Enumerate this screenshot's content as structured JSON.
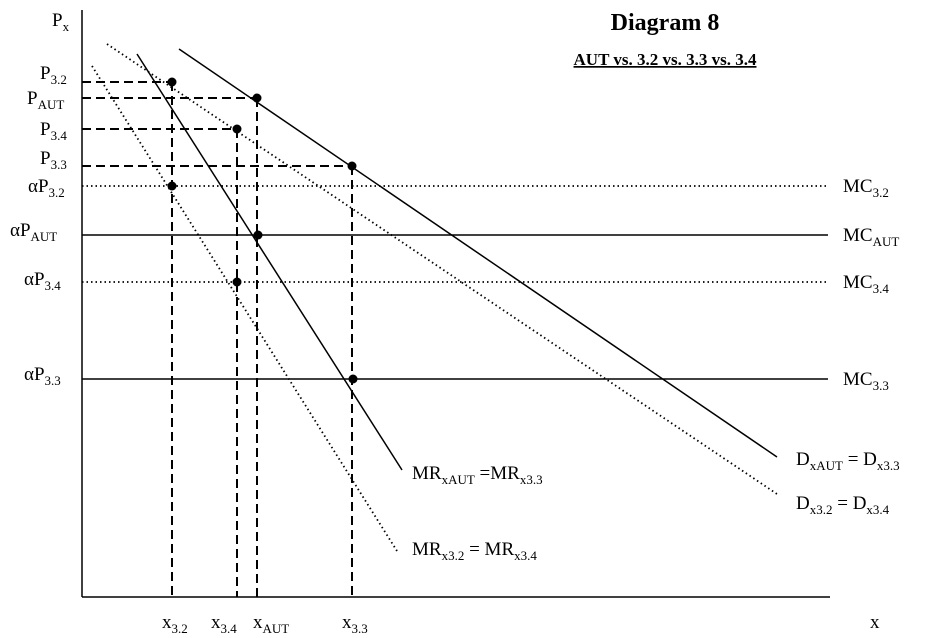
{
  "title": "Diagram 8",
  "subtitle": "AUT vs. 3.2 vs. 3.3 vs. 3.4",
  "axes": {
    "y_label": {
      "main": "P",
      "sub": "x"
    },
    "x_label": "x"
  },
  "price_labels": {
    "p32": {
      "main": "P",
      "sub": "3.2"
    },
    "paut": {
      "main": "P",
      "sub": "AUT"
    },
    "p34": {
      "main": "P",
      "sub": "3.4"
    },
    "p33": {
      "main": "P",
      "sub": "3.3"
    },
    "ap32": {
      "main": "αP",
      "sub": "3.2"
    },
    "apaut": {
      "main": "αP",
      "sub": "AUT"
    },
    "ap34": {
      "main": "αP",
      "sub": "3.4"
    },
    "ap33": {
      "main": "αP",
      "sub": "3.3"
    }
  },
  "mc_labels": {
    "mc32": {
      "main": "MC",
      "sub": "3.2"
    },
    "mcaut": {
      "main": "MC",
      "sub": "AUT"
    },
    "mc34": {
      "main": "MC",
      "sub": "3.4"
    },
    "mc33": {
      "main": "MC",
      "sub": "3.3"
    }
  },
  "curve_labels": {
    "mr_solid": {
      "a": "MR",
      "a_sub": "xAUT",
      "b": " =MR",
      "b_sub": "x3.3"
    },
    "mr_dotted": {
      "a": "MR",
      "a_sub": "x3.2",
      "b": " = MR",
      "b_sub": "x3.4"
    },
    "d_solid": {
      "a": "D",
      "a_sub": "xAUT",
      "b": " = D",
      "b_sub": "x3.3"
    },
    "d_dotted": {
      "a": "D",
      "a_sub": "x3.2",
      "b": " = D",
      "b_sub": "x3.4"
    }
  },
  "quantity_labels": {
    "x32": {
      "main": "x",
      "sub": "3.2"
    },
    "x34": {
      "main": "x",
      "sub": "3.4"
    },
    "xaut": {
      "main": "x",
      "sub": "AUT"
    },
    "x33": {
      "main": "x",
      "sub": "3.3"
    }
  }
}
